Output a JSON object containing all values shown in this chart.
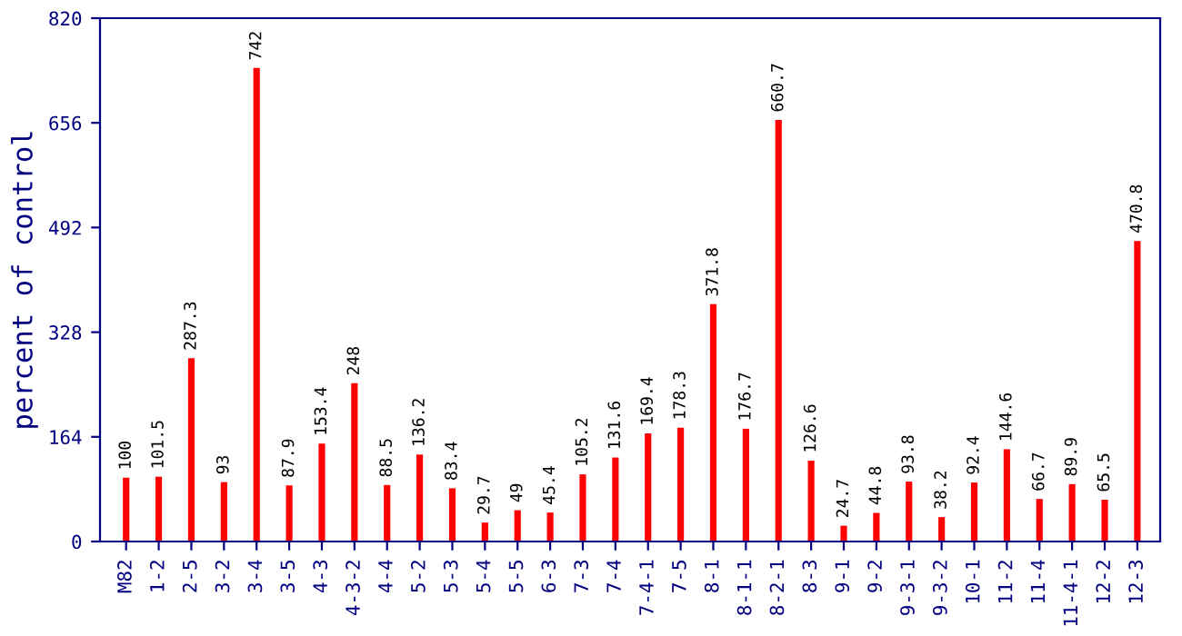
{
  "chart_data": {
    "type": "bar",
    "ylabel": "percent of control",
    "categories": [
      "M82",
      "1-2",
      "2-5",
      "3-2",
      "3-4",
      "3-5",
      "4-3",
      "4-3-2",
      "4-4",
      "5-2",
      "5-3",
      "5-4",
      "5-5",
      "6-3",
      "7-3",
      "7-4",
      "7-4-1",
      "7-5",
      "8-1",
      "8-1-1",
      "8-2-1",
      "8-3",
      "9-1",
      "9-2",
      "9-3-1",
      "9-3-2",
      "10-1",
      "11-2",
      "11-4",
      "11-4-1",
      "12-2",
      "12-3"
    ],
    "values": [
      100,
      101.5,
      287.3,
      93,
      742,
      87.9,
      153.4,
      248,
      88.5,
      136.2,
      83.4,
      29.7,
      49,
      45.4,
      105.2,
      131.6,
      169.4,
      178.3,
      371.8,
      176.7,
      660.7,
      126.6,
      24.7,
      44.8,
      93.8,
      38.2,
      92.4,
      144.6,
      66.7,
      89.9,
      65.5,
      470.8
    ],
    "color": "#ff0000",
    "ylim": [
      0,
      820
    ],
    "yticks": [
      0,
      164,
      328,
      492,
      656,
      820
    ],
    "data_labels": true,
    "grid": false,
    "legend": false
  }
}
